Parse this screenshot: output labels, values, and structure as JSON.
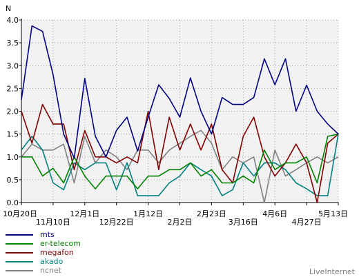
{
  "chart_data": {
    "type": "line",
    "ylabel": "N",
    "ylim": [
      0,
      4
    ],
    "yticks": [
      "0.0",
      "0.5",
      "1.0",
      "1.5",
      "2.0",
      "2.5",
      "3.0",
      "3.5",
      "4.0"
    ],
    "x_tick_labels": [
      {
        "index": 0,
        "label": "10月20日",
        "row": 1
      },
      {
        "index": 3,
        "label": "11月10日",
        "row": 2
      },
      {
        "index": 6,
        "label": "12月1日",
        "row": 1
      },
      {
        "index": 9,
        "label": "12月22日",
        "row": 2
      },
      {
        "index": 12,
        "label": "1月12日",
        "row": 1
      },
      {
        "index": 15,
        "label": "2月2日",
        "row": 2
      },
      {
        "index": 18,
        "label": "2月23日",
        "row": 1
      },
      {
        "index": 21,
        "label": "3月16日",
        "row": 2
      },
      {
        "index": 24,
        "label": "4月6日",
        "row": 1
      },
      {
        "index": 27,
        "label": "4月27日",
        "row": 2
      },
      {
        "index": 30,
        "label": "5月13日",
        "row": 1
      }
    ],
    "x_count": 31,
    "grid": true,
    "legend_position": "bottom-left",
    "series": [
      {
        "name": "mts",
        "color": "#000080",
        "values": [
          2.25,
          3.87,
          3.75,
          2.8,
          1.5,
          0.97,
          2.72,
          1.45,
          1.0,
          1.58,
          1.87,
          1.13,
          1.87,
          2.58,
          2.28,
          1.87,
          2.73,
          2.0,
          1.5,
          2.3,
          2.15,
          2.15,
          2.3,
          3.15,
          2.58,
          3.15,
          2.0,
          2.57,
          2.0,
          1.72,
          1.5
        ]
      },
      {
        "name": "er-telecom",
        "color": "#008000",
        "values": [
          1.0,
          1.0,
          0.58,
          0.75,
          0.43,
          1.0,
          0.58,
          0.3,
          0.58,
          0.58,
          0.58,
          0.3,
          0.58,
          0.58,
          0.72,
          0.72,
          0.87,
          0.58,
          0.72,
          0.43,
          0.43,
          0.58,
          0.43,
          1.15,
          0.72,
          0.87,
          0.87,
          1.0,
          0.43,
          1.45,
          1.5
        ]
      },
      {
        "name": "megafon",
        "color": "#800000",
        "values": [
          2.0,
          1.3,
          2.15,
          1.72,
          1.72,
          0.72,
          1.58,
          1.0,
          1.0,
          0.87,
          1.0,
          0.87,
          2.0,
          0.72,
          1.87,
          1.15,
          1.72,
          1.15,
          1.72,
          0.72,
          0.43,
          1.45,
          1.87,
          1.0,
          0.58,
          0.87,
          1.28,
          0.87,
          0.0,
          1.3,
          1.5
        ]
      },
      {
        "name": "akado",
        "color": "#008080",
        "values": [
          1.15,
          1.45,
          1.15,
          0.43,
          0.28,
          0.87,
          0.72,
          0.87,
          0.87,
          0.28,
          0.87,
          0.15,
          0.15,
          0.15,
          0.43,
          0.58,
          0.87,
          0.72,
          0.58,
          0.15,
          0.28,
          0.87,
          0.58,
          0.87,
          0.87,
          0.72,
          0.43,
          0.3,
          0.15,
          0.15,
          1.5
        ]
      },
      {
        "name": "ncnet",
        "color": "#808080",
        "values": [
          1.0,
          1.28,
          1.15,
          1.15,
          1.28,
          0.43,
          1.45,
          0.87,
          1.15,
          1.0,
          0.72,
          1.15,
          1.15,
          0.87,
          1.15,
          1.3,
          1.45,
          1.58,
          1.3,
          0.72,
          1.0,
          0.87,
          1.0,
          0.0,
          1.15,
          0.58,
          0.72,
          0.87,
          1.0,
          0.87,
          1.0
        ]
      }
    ]
  },
  "watermark": "LiveInternet"
}
